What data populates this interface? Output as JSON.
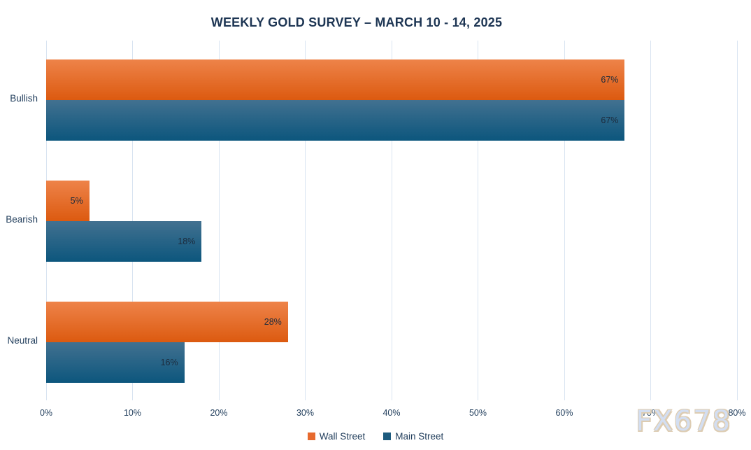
{
  "title": "WEEKLY GOLD SURVEY – MARCH 10 - 14, 2025",
  "watermark": "FX678",
  "chart_data": {
    "type": "bar",
    "orientation": "horizontal",
    "title": "WEEKLY GOLD SURVEY – MARCH 10 - 14, 2025",
    "categories": [
      "Bullish",
      "Bearish",
      "Neutral"
    ],
    "series": [
      {
        "name": "Wall Street",
        "values": [
          67,
          5,
          28
        ],
        "color_top": "#ee8349",
        "color_bottom": "#dc5a10",
        "legend_color": "#e76a2e"
      },
      {
        "name": "Main Street",
        "values": [
          67,
          18,
          16
        ],
        "color_top": "#427190",
        "color_bottom": "#0c567d",
        "legend_color": "#1d5b7e"
      }
    ],
    "value_suffix": "%",
    "x_ticks": [
      "0%",
      "10%",
      "20%",
      "30%",
      "40%",
      "50%",
      "60%",
      "70%",
      "80%"
    ],
    "xlim": [
      0,
      80
    ],
    "grid": "vertical",
    "legend_position": "bottom"
  },
  "colors": {
    "background": "#ffffff",
    "title_navy": "#1d3553",
    "text_navy": "#24405e",
    "gridline": "#d9e4f1",
    "bar_label": "#1c2b3c",
    "watermark_fill": "#d3def1",
    "watermark_outline": "#ddccb2"
  }
}
